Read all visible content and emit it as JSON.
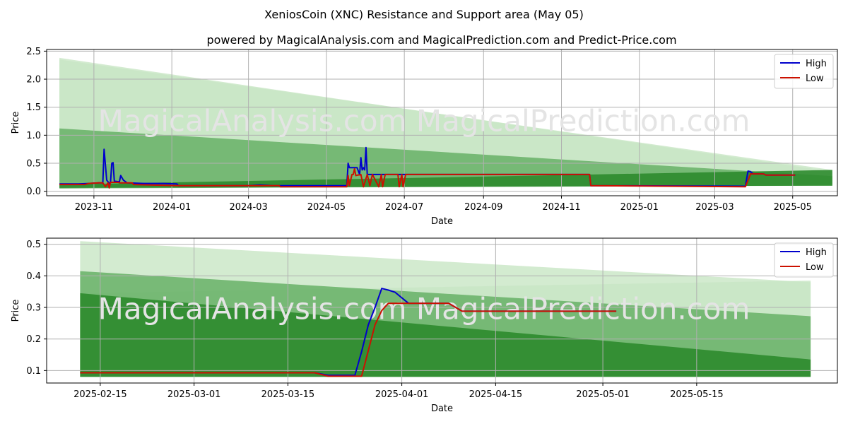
{
  "title": "XeniosCoin (XNC) Resistance and Support area (May 05)",
  "subtitle": "powered by MagicalAnalysis.com and MagicalPrediction.com and Predict-Price.com",
  "watermark": "MagicalAnalysis.com   MagicalPrediction.com",
  "colors": {
    "high": "#0000cc",
    "low": "#cc1100",
    "band_light": "#c8e6c4",
    "band_mid": "#5aaa5a",
    "band_dark": "#2e8b2e",
    "grid": "#b0b0b0",
    "watermark": "#e4e4e4"
  },
  "chart_data": [
    {
      "type": "line",
      "name": "full-history",
      "xlabel": "Date",
      "ylabel": "Price",
      "xlim": [
        "2023-09-25",
        "2025-06-05"
      ],
      "ylim": [
        -0.08,
        2.53
      ],
      "x_ticks": [
        "2023-11",
        "2024-01",
        "2024-03",
        "2024-05",
        "2024-07",
        "2024-09",
        "2024-11",
        "2025-01",
        "2025-03",
        "2025-05"
      ],
      "x_tick_dates": [
        "2023-11-01",
        "2024-01-01",
        "2024-03-01",
        "2024-05-01",
        "2024-07-01",
        "2024-09-01",
        "2024-11-01",
        "2025-01-01",
        "2025-03-01",
        "2025-05-01"
      ],
      "y_ticks": [
        "0.0",
        "0.5",
        "1.0",
        "1.5",
        "2.0",
        "2.5"
      ],
      "y_tick_values": [
        0.0,
        0.5,
        1.0,
        1.5,
        2.0,
        2.5
      ],
      "legend": [
        "High",
        "Low"
      ],
      "legend_position": "top-right",
      "bands": [
        {
          "name": "outer-light",
          "shade": "light",
          "start": "2023-10-05",
          "end": "2025-06-01",
          "top": [
            2.38,
            0.35
          ],
          "bottom": [
            0.05,
            0.12
          ]
        },
        {
          "name": "outer-light-2",
          "shade": "light",
          "start": "2023-10-05",
          "end": "2025-06-01",
          "top": [
            2.35,
            0.38
          ],
          "bottom": [
            0.05,
            0.12
          ]
        },
        {
          "name": "middle",
          "shade": "mid",
          "start": "2023-10-05",
          "end": "2025-06-01",
          "top": [
            1.12,
            0.27
          ],
          "bottom": [
            0.05,
            0.1
          ]
        },
        {
          "name": "inner",
          "shade": "dark",
          "start": "2023-10-05",
          "end": "2025-06-01",
          "top": [
            0.12,
            0.38
          ],
          "bottom": [
            0.06,
            0.1
          ]
        }
      ],
      "series": [
        {
          "name": "High",
          "points": [
            [
              "2023-10-05",
              0.13
            ],
            [
              "2023-10-20",
              0.13
            ],
            [
              "2023-10-28",
              0.14
            ],
            [
              "2023-11-05",
              0.15
            ],
            [
              "2023-11-08",
              0.15
            ],
            [
              "2023-11-09",
              0.75
            ],
            [
              "2023-11-11",
              0.2
            ],
            [
              "2023-11-13",
              0.14
            ],
            [
              "2023-11-14",
              0.16
            ],
            [
              "2023-11-15",
              0.5
            ],
            [
              "2023-11-16",
              0.51
            ],
            [
              "2023-11-17",
              0.18
            ],
            [
              "2023-11-21",
              0.17
            ],
            [
              "2023-11-22",
              0.28
            ],
            [
              "2023-11-24",
              0.2
            ],
            [
              "2023-11-27",
              0.15
            ],
            [
              "2023-12-10",
              0.14
            ],
            [
              "2023-12-25",
              0.14
            ],
            [
              "2024-01-05",
              0.13
            ],
            [
              "2024-01-06",
              0.1
            ],
            [
              "2024-03-01",
              0.1
            ],
            [
              "2024-03-10",
              0.11
            ],
            [
              "2024-03-20",
              0.1
            ],
            [
              "2024-05-12",
              0.1
            ],
            [
              "2024-05-17",
              0.1
            ],
            [
              "2024-05-18",
              0.5
            ],
            [
              "2024-05-19",
              0.42
            ],
            [
              "2024-05-25",
              0.42
            ],
            [
              "2024-05-27",
              0.3
            ],
            [
              "2024-05-28",
              0.6
            ],
            [
              "2024-05-29",
              0.38
            ],
            [
              "2024-05-30",
              0.42
            ],
            [
              "2024-05-31",
              0.38
            ],
            [
              "2024-06-01",
              0.78
            ],
            [
              "2024-06-02",
              0.3
            ],
            [
              "2024-11-23",
              0.3
            ],
            [
              "2024-11-24",
              0.1
            ],
            [
              "2025-03-25",
              0.09
            ],
            [
              "2025-03-27",
              0.36
            ],
            [
              "2025-03-29",
              0.35
            ],
            [
              "2025-03-31",
              0.31
            ],
            [
              "2025-04-08",
              0.31
            ],
            [
              "2025-04-10",
              0.29
            ],
            [
              "2025-05-03",
              0.29
            ]
          ]
        },
        {
          "name": "Low",
          "points": [
            [
              "2023-10-05",
              0.12
            ],
            [
              "2023-10-25",
              0.12
            ],
            [
              "2023-10-28",
              0.14
            ],
            [
              "2023-11-05",
              0.15
            ],
            [
              "2023-11-08",
              0.15
            ],
            [
              "2023-11-10",
              0.08
            ],
            [
              "2023-11-12",
              0.15
            ],
            [
              "2023-11-13",
              0.06
            ],
            [
              "2023-11-14",
              0.16
            ],
            [
              "2023-11-20",
              0.16
            ],
            [
              "2023-11-22",
              0.15
            ],
            [
              "2023-12-01",
              0.15
            ],
            [
              "2023-12-02",
              0.12
            ],
            [
              "2024-01-06",
              0.1
            ],
            [
              "2024-03-25",
              0.1
            ],
            [
              "2024-03-26",
              0.08
            ],
            [
              "2024-05-17",
              0.08
            ],
            [
              "2024-05-18",
              0.28
            ],
            [
              "2024-05-19",
              0.1
            ],
            [
              "2024-05-21",
              0.3
            ],
            [
              "2024-05-22",
              0.3
            ],
            [
              "2024-05-23",
              0.4
            ],
            [
              "2024-05-24",
              0.28
            ],
            [
              "2024-05-28",
              0.3
            ],
            [
              "2024-05-30",
              0.08
            ],
            [
              "2024-06-02",
              0.3
            ],
            [
              "2024-06-04",
              0.1
            ],
            [
              "2024-06-06",
              0.3
            ],
            [
              "2024-06-11",
              0.08
            ],
            [
              "2024-06-13",
              0.3
            ],
            [
              "2024-06-14",
              0.08
            ],
            [
              "2024-06-16",
              0.3
            ],
            [
              "2024-06-26",
              0.3
            ],
            [
              "2024-06-27",
              0.08
            ],
            [
              "2024-06-29",
              0.3
            ],
            [
              "2024-06-30",
              0.08
            ],
            [
              "2024-07-02",
              0.3
            ],
            [
              "2024-11-23",
              0.3
            ],
            [
              "2024-11-24",
              0.1
            ],
            [
              "2025-03-25",
              0.08
            ],
            [
              "2025-03-28",
              0.25
            ],
            [
              "2025-03-29",
              0.31
            ],
            [
              "2025-04-08",
              0.31
            ],
            [
              "2025-04-10",
              0.29
            ],
            [
              "2025-05-03",
              0.29
            ]
          ]
        }
      ]
    },
    {
      "type": "line",
      "name": "recent-detail",
      "xlabel": "Date",
      "ylabel": "Price",
      "xlim": [
        "2025-02-07",
        "2025-06-05"
      ],
      "ylim": [
        0.0605,
        0.5195
      ],
      "x_ticks": [
        "2025-02-15",
        "2025-03-01",
        "2025-03-15",
        "2025-04-01",
        "2025-04-15",
        "2025-05-01",
        "2025-05-15"
      ],
      "x_tick_dates": [
        "2025-02-15",
        "2025-03-01",
        "2025-03-15",
        "2025-04-01",
        "2025-04-15",
        "2025-05-01",
        "2025-05-15"
      ],
      "y_ticks": [
        "0.1",
        "0.2",
        "0.3",
        "0.4",
        "0.5"
      ],
      "y_tick_values": [
        0.1,
        0.2,
        0.3,
        0.4,
        0.5
      ],
      "legend": [
        "High",
        "Low"
      ],
      "legend_position": "top-right",
      "bands": [
        {
          "name": "outer-light",
          "shade": "light",
          "start": "2025-02-12",
          "end": "2025-06-01",
          "top": [
            0.51,
            0.38
          ],
          "bottom": [
            0.08,
            0.08
          ]
        },
        {
          "name": "outer-light-2",
          "shade": "light",
          "start": "2025-02-12",
          "end": "2025-06-01",
          "top": [
            0.345,
            0.385
          ],
          "bottom": [
            0.08,
            0.08
          ]
        },
        {
          "name": "middle",
          "shade": "mid",
          "start": "2025-02-12",
          "end": "2025-06-01",
          "top": [
            0.415,
            0.272
          ],
          "bottom": [
            0.08,
            0.08
          ]
        },
        {
          "name": "inner",
          "shade": "dark",
          "start": "2025-02-12",
          "end": "2025-06-01",
          "top": [
            0.345,
            0.135
          ],
          "bottom": [
            0.08,
            0.08
          ]
        }
      ],
      "series": [
        {
          "name": "High",
          "points": [
            [
              "2025-02-12",
              0.093
            ],
            [
              "2025-03-19",
              0.093
            ],
            [
              "2025-03-21",
              0.085
            ],
            [
              "2025-03-25",
              0.085
            ],
            [
              "2025-03-26",
              0.16
            ],
            [
              "2025-03-27",
              0.245
            ],
            [
              "2025-03-28",
              0.3
            ],
            [
              "2025-03-29",
              0.36
            ],
            [
              "2025-03-30",
              0.355
            ],
            [
              "2025-03-31",
              0.348
            ],
            [
              "2025-04-02",
              0.313
            ],
            [
              "2025-04-08",
              0.313
            ],
            [
              "2025-04-10",
              0.288
            ],
            [
              "2025-05-03",
              0.288
            ]
          ]
        },
        {
          "name": "Low",
          "points": [
            [
              "2025-02-12",
              0.093
            ],
            [
              "2025-03-19",
              0.093
            ],
            [
              "2025-03-21",
              0.082
            ],
            [
              "2025-03-26",
              0.082
            ],
            [
              "2025-03-28",
              0.245
            ],
            [
              "2025-03-29",
              0.29
            ],
            [
              "2025-03-30",
              0.313
            ],
            [
              "2025-04-08",
              0.313
            ],
            [
              "2025-04-10",
              0.288
            ],
            [
              "2025-05-03",
              0.288
            ]
          ]
        }
      ]
    }
  ]
}
